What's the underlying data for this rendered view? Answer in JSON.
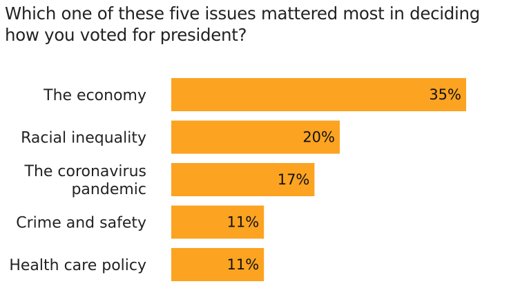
{
  "chart_data": {
    "type": "bar",
    "orientation": "horizontal",
    "title": "Which one of these five issues mattered most in deciding how you voted for president?",
    "categories": [
      [
        "The economy"
      ],
      [
        "Racial inequality"
      ],
      [
        "The coronavirus",
        "pandemic"
      ],
      [
        "Crime and safety"
      ],
      [
        "Health care policy"
      ]
    ],
    "values": [
      35,
      20,
      17,
      11,
      11
    ],
    "value_labels": [
      "35%",
      "20%",
      "17%",
      "11%",
      "11%"
    ],
    "xlabel": "",
    "ylabel": "",
    "grid": false,
    "legend": "none",
    "bar_color": "#fca321"
  }
}
